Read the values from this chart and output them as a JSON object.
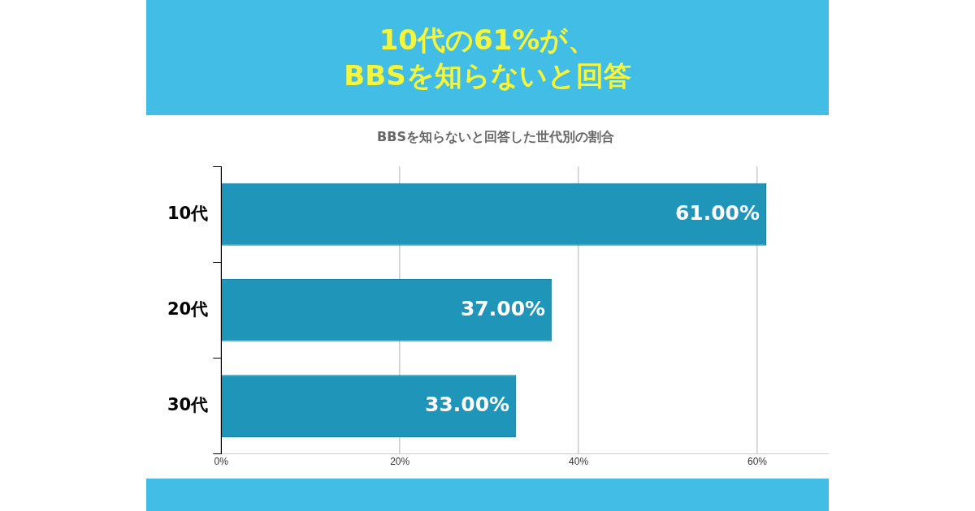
{
  "chart_data": {
    "type": "bar",
    "orientation": "horizontal",
    "title": "10代の61%が、\nBBSを知らないと回答",
    "subtitle": "BBSを知らないと回答した世代別の割合",
    "categories": [
      "10代",
      "20代",
      "30代"
    ],
    "values": [
      61,
      37,
      33
    ],
    "value_labels": [
      "61.00%",
      "37.00%",
      "33.00%"
    ],
    "color": "#1e95b9",
    "xlim": [
      0,
      68
    ],
    "xticks": [
      {
        "value": 0,
        "label": "0%"
      },
      {
        "value": 20,
        "label": "20%"
      },
      {
        "value": 40,
        "label": "40%"
      },
      {
        "value": 60,
        "label": "60%"
      }
    ],
    "grid": "x",
    "legend": false
  }
}
